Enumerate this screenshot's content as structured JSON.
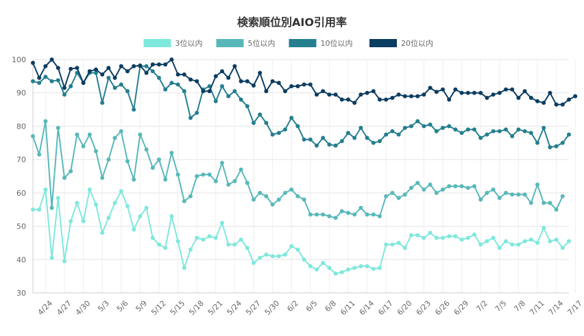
{
  "chart_data": {
    "type": "line",
    "title": "検索順位別AIO引用率",
    "xlabel": "",
    "ylabel": "",
    "ylim": [
      30,
      100
    ],
    "yticks": [
      30,
      40,
      50,
      60,
      70,
      80,
      90,
      100
    ],
    "grid": true,
    "legend_position": "top",
    "x_start": "4/22",
    "x_end": "7/17",
    "x_tick_labels": [
      "4/24",
      "4/27",
      "4/30",
      "5/3",
      "5/6",
      "5/9",
      "5/12",
      "5/15",
      "5/18",
      "5/21",
      "5/24",
      "5/27",
      "5/30",
      "6/2",
      "6/5",
      "6/8",
      "6/11",
      "6/14",
      "6/17",
      "6/20",
      "6/23",
      "6/26",
      "6/29",
      "7/2",
      "7/5",
      "7/8",
      "7/11",
      "7/14",
      "7/17"
    ],
    "series": [
      {
        "name": "3位以内",
        "color": "#7fe8dc",
        "values": [
          55,
          55,
          61,
          40.5,
          58.5,
          39.5,
          51.5,
          57,
          51.5,
          61,
          56.5,
          48,
          52.5,
          57,
          60.5,
          56,
          49,
          53,
          55.5,
          46.5,
          44.5,
          43.5,
          53,
          45.5,
          37.5,
          43,
          46.5,
          46,
          47,
          46.5,
          51,
          44.5,
          44.5,
          46,
          43.5,
          39,
          40.5,
          41.5,
          41,
          41,
          41.5,
          44,
          43,
          40,
          38,
          37,
          39,
          37.5,
          35.8,
          36.2,
          37,
          37.5,
          38,
          38,
          37.2,
          37.5,
          44.5,
          44.5,
          45,
          43.5,
          47.3,
          47.3,
          46.5,
          48,
          46.5,
          46.5,
          47,
          47,
          46,
          46.5,
          47.5,
          44.5,
          45.5,
          46.5,
          43.5,
          45.5,
          44.5,
          44.5,
          45.5,
          46,
          45,
          49.5,
          45.5,
          46,
          43.5,
          45.5
        ]
      },
      {
        "name": "5位以内",
        "color": "#58b8b9",
        "values": [
          77,
          71.5,
          81.5,
          55.5,
          79.5,
          64.5,
          66.5,
          77.5,
          74,
          77.5,
          72.5,
          64.5,
          70,
          76.5,
          78.5,
          69.5,
          64,
          77.5,
          73,
          67.5,
          70,
          64,
          72,
          65.5,
          57.5,
          59,
          65,
          65.5,
          65.5,
          63.5,
          69,
          62.5,
          63.5,
          67,
          63,
          58,
          60,
          59,
          56.5,
          58,
          60,
          61,
          59,
          58,
          53.5,
          53.5,
          53.5,
          53,
          52.5,
          54.5,
          54,
          53.5,
          55.5,
          53.5,
          53.5,
          53,
          59,
          60,
          58.5,
          59.5,
          61.5,
          63,
          61,
          62.5,
          60,
          61,
          62,
          62,
          62,
          61.5,
          62,
          58,
          60,
          61,
          58.5,
          60,
          59.5,
          59.5,
          59.5,
          57,
          62.5,
          57,
          57,
          55,
          59
        ]
      },
      {
        "name": "10位以内",
        "color": "#247f8e",
        "values": [
          93.5,
          93,
          94.8,
          93.5,
          93.8,
          89.5,
          92,
          96,
          93,
          96,
          96,
          87,
          94.5,
          91.5,
          92.5,
          90.5,
          85,
          98,
          98,
          96.5,
          94.5,
          91,
          93,
          92.5,
          90.5,
          82.5,
          84,
          91,
          92,
          87.5,
          92,
          89,
          90.5,
          88,
          86,
          81,
          83.5,
          81,
          77.5,
          78,
          79,
          82.5,
          80,
          76,
          76,
          74.2,
          76.5,
          74.5,
          74.2,
          75.5,
          78,
          76.5,
          79.5,
          76.5,
          75,
          75.5,
          77.5,
          78.5,
          77.5,
          79.5,
          80,
          81.5,
          80,
          80.5,
          78.5,
          79.5,
          80,
          79,
          78,
          79,
          79,
          76.5,
          77.5,
          78.5,
          78.5,
          79,
          77,
          79,
          78.5,
          78,
          75,
          79.5,
          73.7,
          74,
          75,
          77.5
        ]
      },
      {
        "name": "20位以内",
        "color": "#0c3d62",
        "values": [
          99,
          94.5,
          98,
          100,
          97.5,
          91.5,
          97.2,
          97.5,
          93,
          96.5,
          97,
          95.5,
          97.5,
          94.5,
          98,
          96.5,
          98,
          98.2,
          96,
          98.5,
          98.5,
          98.5,
          100,
          95.5,
          95.5,
          94,
          93.5,
          90.5,
          90.5,
          95,
          96.5,
          94.5,
          98,
          93.5,
          93.5,
          92.2,
          96,
          90.5,
          93.5,
          93,
          90.5,
          92,
          92,
          92.5,
          92.5,
          89.5,
          90.5,
          89.5,
          89.5,
          88,
          88,
          87,
          89.5,
          90,
          90.5,
          88,
          88,
          88.5,
          89.5,
          89,
          89,
          89,
          89.5,
          91.5,
          90.3,
          91,
          88,
          91,
          90,
          90,
          90,
          90,
          88.5,
          89.5,
          90,
          91,
          91,
          88.5,
          90.5,
          88.5,
          87.5,
          87,
          90,
          86.5,
          86.5,
          88,
          89
        ]
      }
    ]
  }
}
